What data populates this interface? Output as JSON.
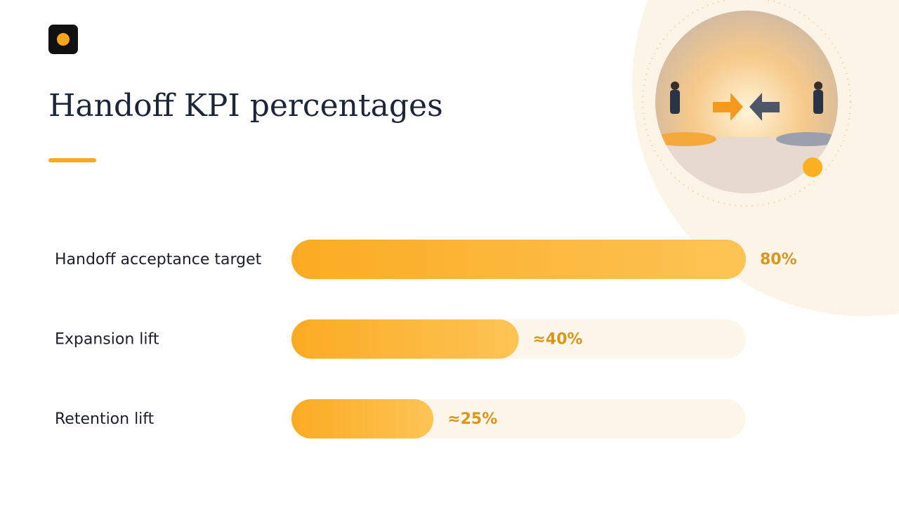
{
  "chart_data": {
    "type": "bar",
    "orientation": "horizontal",
    "title": "Handoff KPI percentages",
    "categories": [
      "Handoff acceptance target",
      "Expansion lift",
      "Retention lift"
    ],
    "values": [
      80,
      40,
      25
    ],
    "value_labels": [
      "80%",
      "≈40%",
      "≈25%"
    ],
    "color": "#fbab22",
    "xlim": [
      0,
      80
    ]
  }
}
